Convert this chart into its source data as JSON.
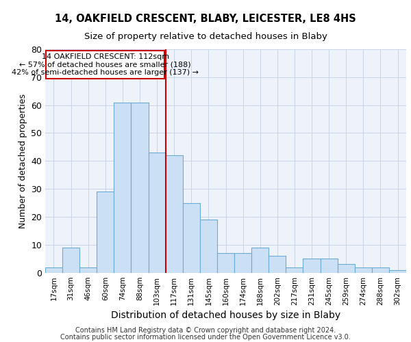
{
  "title1": "14, OAKFIELD CRESCENT, BLABY, LEICESTER, LE8 4HS",
  "title2": "Size of property relative to detached houses in Blaby",
  "xlabel": "Distribution of detached houses by size in Blaby",
  "ylabel": "Number of detached properties",
  "footer1": "Contains HM Land Registry data © Crown copyright and database right 2024.",
  "footer2": "Contains public sector information licensed under the Open Government Licence v3.0.",
  "annotation_line1": "14 OAKFIELD CRESCENT: 112sqm",
  "annotation_line2": "← 57% of detached houses are smaller (188)",
  "annotation_line3": "42% of semi-detached houses are larger (137) →",
  "bar_labels": [
    "17sqm",
    "31sqm",
    "46sqm",
    "60sqm",
    "74sqm",
    "88sqm",
    "103sqm",
    "117sqm",
    "131sqm",
    "145sqm",
    "160sqm",
    "174sqm",
    "188sqm",
    "202sqm",
    "217sqm",
    "231sqm",
    "245sqm",
    "259sqm",
    "274sqm",
    "288sqm",
    "302sqm"
  ],
  "bar_values": [
    2,
    9,
    2,
    29,
    61,
    61,
    43,
    42,
    25,
    19,
    7,
    7,
    9,
    6,
    2,
    5,
    5,
    3,
    2,
    2,
    1
  ],
  "bar_color": "#cce0f5",
  "bar_edge_color": "#6aaad4",
  "vline_color": "#cc0000",
  "vline_x": 6.5,
  "annotation_box_color": "#cc0000",
  "ylim": [
    0,
    80
  ],
  "yticks": [
    0,
    10,
    20,
    30,
    40,
    50,
    60,
    70,
    80
  ],
  "grid_color": "#c8d4e8",
  "bg_color": "#eef2fa"
}
